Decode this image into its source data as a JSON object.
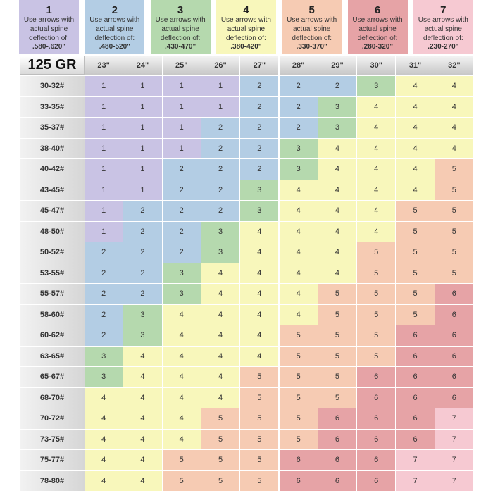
{
  "chart_data": {
    "type": "table",
    "title": "125 GR",
    "legend": [
      {
        "group": "1",
        "line1": "Use arrows with",
        "line2": "actual spine",
        "line3": "deflection of:",
        "range": ".580-.620\"",
        "color": "#c9c3e4"
      },
      {
        "group": "2",
        "line1": "Use arrows with",
        "line2": "actual spine",
        "line3": "deflection of:",
        "range": ".480-520\"",
        "color": "#b3cde4"
      },
      {
        "group": "3",
        "line1": "Use arrows with",
        "line2": "actual spine",
        "line3": "deflection of:",
        "range": ".430-470\"",
        "color": "#b5d9ae"
      },
      {
        "group": "4",
        "line1": "Use arrows with",
        "line2": "actual spine",
        "line3": "deflection of:",
        "range": ".380-420\"",
        "color": "#f8f7bb"
      },
      {
        "group": "5",
        "line1": "Use arrows with",
        "line2": "actual spine",
        "line3": "deflection of:",
        "range": ".330-370\"",
        "color": "#f6cbb3"
      },
      {
        "group": "6",
        "line1": "Use arrows with",
        "line2": "actual spine",
        "line3": "deflection of:",
        "range": ".280-320\"",
        "color": "#e6a3a6"
      },
      {
        "group": "7",
        "line1": "Use arrows with",
        "line2": "actual spine",
        "line3": "deflection of:",
        "range": ".230-270\"",
        "color": "#f6c9d2"
      }
    ],
    "columns": [
      "23\"",
      "24\"",
      "25\"",
      "26\"",
      "27\"",
      "28\"",
      "29\"",
      "30\"",
      "31\"",
      "32\""
    ],
    "rows": [
      {
        "label": "30-32#",
        "values": [
          1,
          1,
          1,
          1,
          2,
          2,
          2,
          3,
          4,
          4
        ]
      },
      {
        "label": "33-35#",
        "values": [
          1,
          1,
          1,
          1,
          2,
          2,
          3,
          4,
          4,
          4
        ]
      },
      {
        "label": "35-37#",
        "values": [
          1,
          1,
          1,
          2,
          2,
          2,
          3,
          4,
          4,
          4
        ]
      },
      {
        "label": "38-40#",
        "values": [
          1,
          1,
          1,
          2,
          2,
          3,
          4,
          4,
          4,
          4
        ]
      },
      {
        "label": "40-42#",
        "values": [
          1,
          1,
          2,
          2,
          2,
          3,
          4,
          4,
          4,
          5
        ]
      },
      {
        "label": "43-45#",
        "values": [
          1,
          1,
          2,
          2,
          3,
          4,
          4,
          4,
          4,
          5
        ]
      },
      {
        "label": "45-47#",
        "values": [
          1,
          2,
          2,
          2,
          3,
          4,
          4,
          4,
          5,
          5
        ]
      },
      {
        "label": "48-50#",
        "values": [
          1,
          2,
          2,
          3,
          4,
          4,
          4,
          4,
          5,
          5
        ]
      },
      {
        "label": "50-52#",
        "values": [
          2,
          2,
          2,
          3,
          4,
          4,
          4,
          5,
          5,
          5
        ]
      },
      {
        "label": "53-55#",
        "values": [
          2,
          2,
          3,
          4,
          4,
          4,
          4,
          5,
          5,
          5
        ]
      },
      {
        "label": "55-57#",
        "values": [
          2,
          2,
          3,
          4,
          4,
          4,
          5,
          5,
          5,
          6
        ]
      },
      {
        "label": "58-60#",
        "values": [
          2,
          3,
          4,
          4,
          4,
          4,
          5,
          5,
          5,
          6
        ]
      },
      {
        "label": "60-62#",
        "values": [
          2,
          3,
          4,
          4,
          4,
          5,
          5,
          5,
          6,
          6
        ]
      },
      {
        "label": "63-65#",
        "values": [
          3,
          4,
          4,
          4,
          4,
          5,
          5,
          5,
          6,
          6
        ]
      },
      {
        "label": "65-67#",
        "values": [
          3,
          4,
          4,
          4,
          5,
          5,
          5,
          6,
          6,
          6
        ]
      },
      {
        "label": "68-70#",
        "values": [
          4,
          4,
          4,
          4,
          5,
          5,
          5,
          6,
          6,
          6
        ]
      },
      {
        "label": "70-72#",
        "values": [
          4,
          4,
          4,
          5,
          5,
          5,
          6,
          6,
          6,
          7
        ]
      },
      {
        "label": "73-75#",
        "values": [
          4,
          4,
          4,
          5,
          5,
          5,
          6,
          6,
          6,
          7
        ]
      },
      {
        "label": "75-77#",
        "values": [
          4,
          4,
          5,
          5,
          5,
          6,
          6,
          6,
          7,
          7
        ]
      },
      {
        "label": "78-80#",
        "values": [
          4,
          4,
          5,
          5,
          5,
          6,
          6,
          6,
          7,
          7
        ]
      }
    ]
  }
}
